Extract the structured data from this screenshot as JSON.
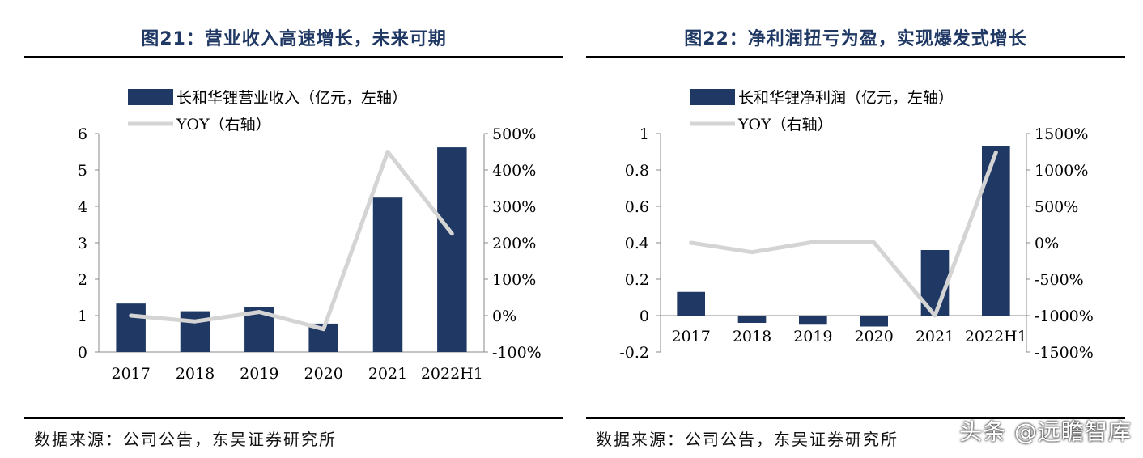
{
  "left": {
    "title": "图21：营业收入高速增长，未来可期",
    "source": "数据来源：公司公告，东吴证券研究所"
  },
  "right": {
    "title": "图22：净利润扭亏为盈，实现爆发式增长",
    "source": "数据来源：公司公告，东吴证券研究所"
  },
  "watermark": "头条 @远瞻智库",
  "colors": {
    "bar": "#1f3864",
    "line": "#d4d4d4",
    "title": "#1f3864"
  },
  "chart_data": [
    {
      "type": "bar",
      "categories": [
        "2017",
        "2018",
        "2019",
        "2020",
        "2021",
        "2022H1"
      ],
      "series": [
        {
          "name": "长和华锂营业收入（亿元，左轴）",
          "type": "bar",
          "axis": "left",
          "values": [
            1.33,
            1.12,
            1.24,
            0.78,
            4.24,
            5.62
          ]
        },
        {
          "name": "YOY（右轴）",
          "type": "line",
          "axis": "right",
          "values": [
            0.0,
            -0.16,
            0.1,
            -0.37,
            4.5,
            2.25
          ]
        }
      ],
      "left_axis": {
        "min": 0,
        "max": 6,
        "ticks": [
          0,
          1,
          2,
          3,
          4,
          5,
          6
        ],
        "tick_labels": [
          "0",
          "1",
          "2",
          "3",
          "4",
          "5",
          "6"
        ]
      },
      "right_axis": {
        "min": -1,
        "max": 5,
        "ticks": [
          -1,
          0,
          1,
          2,
          3,
          4,
          5
        ],
        "tick_labels": [
          "-100%",
          "0%",
          "100%",
          "200%",
          "300%",
          "400%",
          "500%"
        ]
      },
      "legend": "top-left"
    },
    {
      "type": "bar",
      "categories": [
        "2017",
        "2018",
        "2019",
        "2020",
        "2021",
        "2022H1"
      ],
      "series": [
        {
          "name": "长和华锂净利润（亿元，左轴）",
          "type": "bar",
          "axis": "left",
          "values": [
            0.13,
            -0.04,
            -0.05,
            -0.06,
            0.36,
            0.93
          ]
        },
        {
          "name": "YOY（右轴）",
          "type": "line",
          "axis": "right",
          "values": [
            0.0,
            -1.3,
            0.1,
            0.05,
            -10.0,
            12.4
          ]
        }
      ],
      "left_axis": {
        "min": -0.2,
        "max": 1,
        "ticks": [
          -0.2,
          0,
          0.2,
          0.4,
          0.6,
          0.8,
          1
        ],
        "tick_labels": [
          "-0.2",
          "0",
          "0.2",
          "0.4",
          "0.6",
          "0.8",
          "1"
        ]
      },
      "right_axis": {
        "min": -15,
        "max": 15,
        "ticks": [
          -15,
          -10,
          -5,
          0,
          5,
          10,
          15
        ],
        "tick_labels": [
          "-1500%",
          "-1000%",
          "-500%",
          "0%",
          "500%",
          "1000%",
          "1500%"
        ]
      },
      "legend": "top-left"
    }
  ]
}
